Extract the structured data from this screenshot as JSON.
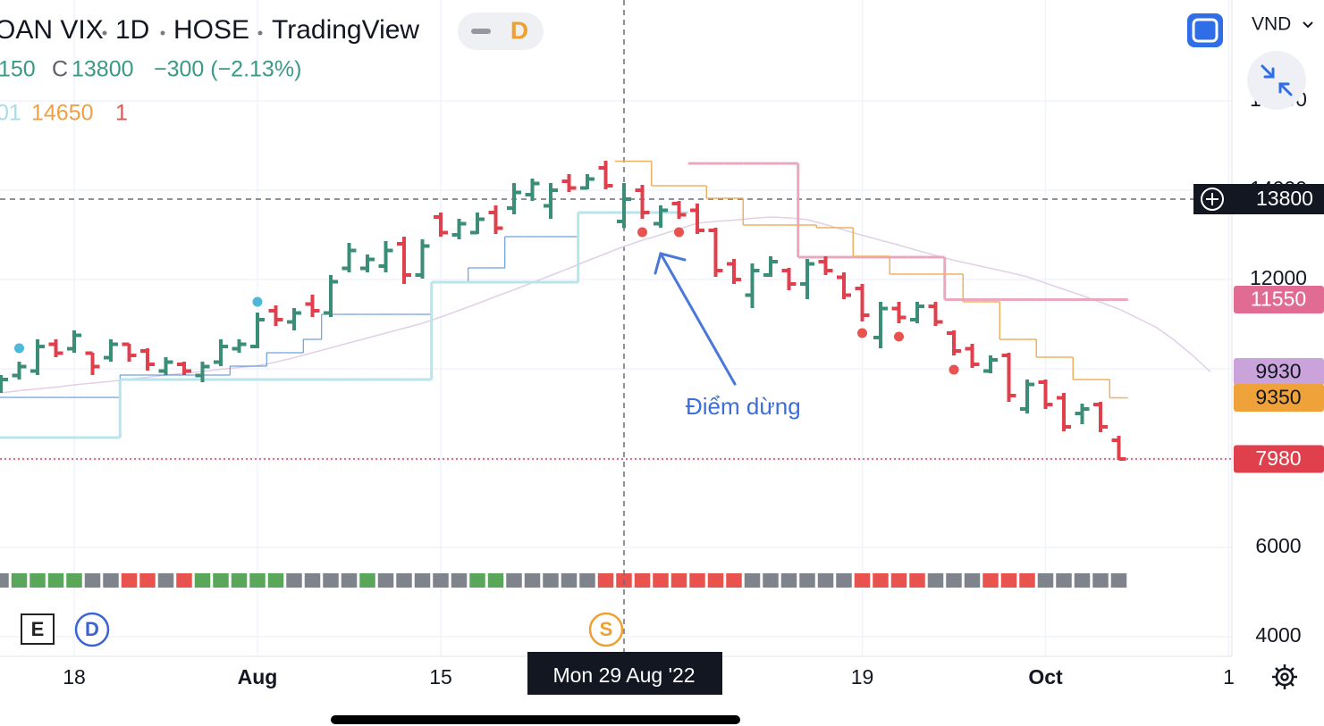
{
  "chart_data": {
    "type": "ohlc",
    "header": {
      "symbol": "OAN VIX",
      "interval": "1D",
      "exchange": "HOSE",
      "source": "TradingView",
      "badge": "D"
    },
    "legend": {
      "low_tail": "150",
      "close_label": "C",
      "change": "−300 (−2.13%)"
    },
    "indicator_texts": [
      "01",
      "1"
    ],
    "currency": "VND",
    "event_badges": [
      "E",
      "D",
      "S"
    ],
    "annotation": "Điểm dừng",
    "crosshair": {
      "label": "Mon 29 Aug '22",
      "index": 34
    },
    "categories": [
      null,
      null,
      null,
      null,
      "18",
      null,
      null,
      null,
      null,
      null,
      null,
      null,
      null,
      null,
      "Aug",
      null,
      null,
      null,
      null,
      null,
      null,
      null,
      null,
      null,
      "15",
      null,
      null,
      null,
      null,
      null,
      null,
      null,
      null,
      null,
      null,
      null,
      null,
      null,
      null,
      null,
      null,
      null,
      null,
      null,
      null,
      null,
      null,
      "19",
      null,
      null,
      null,
      null,
      null,
      null,
      null,
      null,
      null,
      "Oct",
      null,
      null,
      null,
      null,
      null,
      null,
      null,
      null,
      null,
      "1"
    ],
    "ohlc": [
      [
        9560,
        9860,
        9460,
        9760
      ],
      [
        9850,
        10160,
        9760,
        10050
      ],
      [
        9950,
        10660,
        9860,
        10500
      ],
      [
        10550,
        10660,
        10260,
        10350
      ],
      [
        10450,
        10860,
        10360,
        10750
      ],
      [
        10350,
        10360,
        9860,
        10050
      ],
      [
        10250,
        10660,
        10160,
        10550
      ],
      [
        10550,
        10560,
        10160,
        10300
      ],
      [
        10400,
        10460,
        9960,
        10100
      ],
      [
        9950,
        10260,
        9860,
        10150
      ],
      [
        10100,
        10160,
        9860,
        9950
      ],
      [
        9850,
        10160,
        9700,
        10050
      ],
      [
        10150,
        10660,
        10060,
        10500
      ],
      [
        10450,
        10660,
        10360,
        10550
      ],
      [
        10500,
        11260,
        10460,
        11100
      ],
      [
        11300,
        11420,
        10960,
        11100
      ],
      [
        11050,
        11360,
        10860,
        11250
      ],
      [
        11450,
        11660,
        11160,
        11300
      ],
      [
        11250,
        12100,
        11160,
        11950
      ],
      [
        12250,
        12820,
        12160,
        12650
      ],
      [
        12250,
        12560,
        12160,
        12450
      ],
      [
        12300,
        12860,
        12160,
        12650
      ],
      [
        12800,
        12960,
        11900,
        12100
      ],
      [
        12100,
        12900,
        12020,
        12750
      ],
      [
        13400,
        13500,
        12960,
        13050
      ],
      [
        13000,
        13360,
        12900,
        13250
      ],
      [
        13050,
        13500,
        13020,
        13350
      ],
      [
        13500,
        13660,
        13020,
        13150
      ],
      [
        13600,
        14160,
        13460,
        13950
      ],
      [
        13900,
        14260,
        13760,
        14150
      ],
      [
        13650,
        14160,
        13360,
        14000
      ],
      [
        14200,
        14360,
        13960,
        14050
      ],
      [
        14050,
        14360,
        14020,
        14250
      ],
      [
        14500,
        14660,
        14020,
        14100
      ],
      [
        13300,
        14160,
        13150,
        13800
      ],
      [
        14000,
        14120,
        13360,
        13500
      ],
      [
        13250,
        13660,
        13160,
        13550
      ],
      [
        13700,
        13760,
        13360,
        13450
      ],
      [
        13550,
        13700,
        13020,
        13100
      ],
      [
        13100,
        13160,
        12060,
        12200
      ],
      [
        12350,
        12460,
        11900,
        12000
      ],
      [
        11650,
        12360,
        11360,
        12200
      ],
      [
        12100,
        12520,
        12060,
        12400
      ],
      [
        12200,
        12260,
        11760,
        11900
      ],
      [
        11900,
        12460,
        11560,
        12350
      ],
      [
        12400,
        12520,
        12100,
        12200
      ],
      [
        12050,
        12160,
        11560,
        11650
      ],
      [
        11800,
        11900,
        11060,
        11200
      ],
      [
        10700,
        11500,
        10460,
        11350
      ],
      [
        11350,
        11500,
        11020,
        11150
      ],
      [
        11100,
        11500,
        11020,
        11400
      ],
      [
        11400,
        11500,
        10960,
        11050
      ],
      [
        10800,
        10860,
        10300,
        10400
      ],
      [
        10450,
        10560,
        10020,
        10100
      ],
      [
        9950,
        10300,
        9900,
        10200
      ],
      [
        10300,
        10360,
        9260,
        9400
      ],
      [
        9100,
        9760,
        9000,
        9650
      ],
      [
        9700,
        9760,
        9100,
        9200
      ],
      [
        9350,
        9460,
        8600,
        8700
      ],
      [
        9000,
        9220,
        8760,
        9100
      ],
      [
        9200,
        9260,
        8580,
        8700
      ],
      [
        8400,
        8500,
        7960,
        7980
      ],
      null,
      null,
      null,
      null,
      null,
      null
    ],
    "up_color": "#3b8d78",
    "down_color": "#e0404c",
    "last_price_color": "#e0404c",
    "overlays": [
      {
        "style": "line",
        "color": "#e2cfe8",
        "width": 1.5,
        "axis_label": true,
        "label_color": "#c9a3d9",
        "label_text_color": "#131722",
        "values": [
          9460,
          9510,
          9550,
          9590,
          9640,
          9680,
          9720,
          9770,
          9810,
          9860,
          9900,
          9940,
          9990,
          10030,
          10070,
          10150,
          10250,
          10360,
          10470,
          10580,
          10690,
          10800,
          10910,
          11020,
          11160,
          11310,
          11460,
          11620,
          11770,
          11930,
          12090,
          12250,
          12420,
          12580,
          12740,
          12880,
          13000,
          13130,
          13260,
          13300,
          13330,
          13370,
          13400,
          13380,
          13340,
          13230,
          13110,
          12990,
          12880,
          12770,
          12650,
          12540,
          12430,
          12340,
          12250,
          12160,
          12060,
          11920,
          11780,
          11640,
          11490,
          11340,
          11140,
          10940,
          10650,
          10310,
          9930,
          null
        ]
      },
      {
        "style": "step",
        "color": "#4a8ad8",
        "width": 1,
        "axis_label": false,
        "values": [
          9360,
          9360,
          9360,
          9360,
          9360,
          9360,
          9360,
          9860,
          9860,
          9860,
          9860,
          9860,
          9860,
          10060,
          10060,
          10360,
          10360,
          10660,
          11220,
          11220,
          11220,
          11220,
          11220,
          11220,
          11940,
          11940,
          12260,
          12260,
          12960,
          12960,
          12960,
          12960,
          13500,
          13500,
          13500,
          null,
          null,
          null,
          null,
          null,
          null,
          null,
          null,
          null,
          null,
          null,
          null,
          null,
          null,
          null,
          null,
          null,
          null,
          null,
          null,
          null,
          null,
          null,
          null,
          null,
          null,
          null,
          null,
          null,
          null,
          null,
          null,
          null
        ]
      },
      {
        "style": "step",
        "color": "#b8e4ec",
        "width": 3,
        "axis_label": false,
        "values": [
          8460,
          8460,
          8460,
          8460,
          8460,
          8460,
          8460,
          9760,
          9760,
          9760,
          9760,
          9760,
          9760,
          9760,
          9760,
          9760,
          9760,
          9760,
          9760,
          9760,
          9760,
          9760,
          9760,
          9760,
          11940,
          11940,
          11940,
          11940,
          11940,
          11940,
          11940,
          11940,
          13500,
          13500,
          13500,
          13500,
          13500,
          13500,
          null,
          null,
          null,
          null,
          null,
          null,
          null,
          null,
          null,
          null,
          null,
          null,
          null,
          null,
          null,
          null,
          null,
          null,
          null,
          null,
          null,
          null,
          null,
          null,
          null,
          null,
          null,
          null,
          null,
          null
        ]
      },
      {
        "style": "step",
        "color": "#e9a8c0",
        "width": 3,
        "axis_label": true,
        "label_color": "#e06c94",
        "label_text_color": "#ffffff",
        "values": [
          null,
          null,
          null,
          null,
          null,
          null,
          null,
          null,
          null,
          null,
          null,
          null,
          null,
          null,
          null,
          null,
          null,
          null,
          null,
          null,
          null,
          null,
          null,
          null,
          null,
          null,
          null,
          null,
          null,
          null,
          null,
          null,
          null,
          null,
          null,
          null,
          null,
          null,
          14600,
          14600,
          14600,
          14600,
          14600,
          14600,
          12500,
          12500,
          12500,
          12500,
          12500,
          12500,
          12500,
          12500,
          11550,
          11550,
          11550,
          11550,
          11550,
          11550,
          11550,
          11550,
          11550,
          11550,
          null,
          null,
          null,
          null,
          null,
          null
        ]
      },
      {
        "style": "step",
        "color": "#f0b060",
        "width": 1.5,
        "axis_label": true,
        "label_color": "#f0a23a",
        "label_text_color": "#131722",
        "values": [
          null,
          null,
          null,
          null,
          null,
          null,
          null,
          null,
          null,
          null,
          null,
          null,
          null,
          null,
          null,
          null,
          null,
          null,
          null,
          null,
          null,
          null,
          null,
          null,
          null,
          null,
          null,
          null,
          null,
          null,
          null,
          null,
          null,
          null,
          14650,
          14650,
          14100,
          14100,
          14100,
          13820,
          13820,
          13220,
          13220,
          13220,
          13220,
          13160,
          13160,
          12520,
          12520,
          12120,
          12120,
          12120,
          12120,
          11500,
          11500,
          10660,
          10660,
          10260,
          10260,
          9760,
          9760,
          9350,
          null,
          null,
          null,
          null,
          null,
          null
        ]
      }
    ],
    "markers": [
      {
        "color": "#4fb8d8",
        "values": [
          null,
          10460,
          null,
          null,
          null,
          null,
          null,
          null,
          null,
          null,
          null,
          null,
          null,
          null,
          11500,
          null,
          null,
          null,
          null,
          null,
          null,
          null,
          null,
          null,
          null,
          null,
          null,
          null,
          null,
          null,
          null,
          null,
          null,
          null,
          null,
          null,
          null,
          null,
          null,
          null,
          null,
          null,
          null,
          null,
          null,
          null,
          null,
          null,
          null,
          null,
          null,
          null,
          null,
          null,
          null,
          null,
          null,
          null,
          null,
          null,
          null,
          null,
          null,
          null,
          null,
          null,
          null,
          null
        ]
      },
      {
        "color": "#e8534f",
        "values": [
          null,
          null,
          null,
          null,
          null,
          null,
          null,
          null,
          null,
          null,
          null,
          null,
          null,
          null,
          null,
          null,
          null,
          null,
          null,
          null,
          null,
          null,
          null,
          null,
          null,
          null,
          null,
          null,
          null,
          null,
          null,
          null,
          null,
          null,
          null,
          13060,
          null,
          13060,
          null,
          null,
          null,
          null,
          null,
          null,
          null,
          null,
          null,
          10800,
          null,
          10720,
          null,
          null,
          9980,
          null,
          null,
          null,
          null,
          null,
          null,
          null,
          null,
          null,
          null,
          null,
          null,
          null,
          null,
          null
        ]
      }
    ],
    "strip_colors": [
      "#7f838c",
      "#5aa65a",
      "#5aa65a",
      "#5aa65a",
      "#5aa65a",
      "#7f838c",
      "#7f838c",
      "#e8534f",
      "#e8534f",
      "#7f838c",
      "#e8534f",
      "#5aa65a",
      "#5aa65a",
      "#5aa65a",
      "#5aa65a",
      "#5aa65a",
      "#7f838c",
      "#7f838c",
      "#7f838c",
      "#7f838c",
      "#5aa65a",
      "#7f838c",
      "#7f838c",
      "#7f838c",
      "#7f838c",
      "#7f838c",
      "#5aa65a",
      "#5aa65a",
      "#7f838c",
      "#7f838c",
      "#7f838c",
      "#7f838c",
      "#7f838c",
      "#e8534f",
      "#e8534f",
      "#e8534f",
      "#e8534f",
      "#e8534f",
      "#e8534f",
      "#e8534f",
      "#e8534f",
      "#7f838c",
      "#7f838c",
      "#7f838c",
      "#7f838c",
      "#7f838c",
      "#7f838c",
      "#e8534f",
      "#e8534f",
      "#e8534f",
      "#e8534f",
      "#7f838c",
      "#7f838c",
      "#7f838c",
      "#e8534f",
      "#e8534f",
      "#e8534f",
      "#7f838c",
      "#7f838c",
      "#7f838c",
      "#7f838c",
      "#7f838c"
    ],
    "ylim": [
      3560,
      18260
    ],
    "yticks": [
      4000,
      6000,
      8000,
      10000,
      12000,
      14000,
      16000
    ],
    "grid": true
  }
}
